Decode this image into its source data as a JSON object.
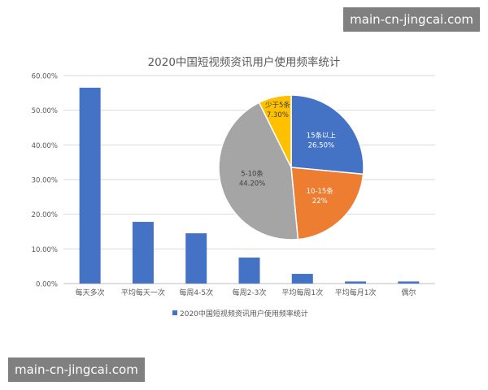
{
  "watermarks": {
    "top": "main-cn-jingcai.com",
    "bottom": "main-cn-jingcai.com"
  },
  "chart_data": [
    {
      "type": "bar",
      "title": "2020中国短视频资讯用户使用频率统计",
      "categories": [
        "每天多次",
        "平均每天一次",
        "每周4-5次",
        "每周2-3次",
        "平均每周1次",
        "平均每月1次",
        "偶尔"
      ],
      "series": [
        {
          "name": "2020中国短视频资讯用户使用频率统计",
          "values": [
            56.5,
            17.8,
            14.5,
            7.5,
            2.8,
            0.6,
            0.6
          ],
          "color": "#4472C4"
        }
      ],
      "ylim": [
        0,
        60
      ],
      "yticks": [
        "0.00%",
        "10.00%",
        "20.00%",
        "30.00%",
        "40.00%",
        "50.00%",
        "60.00%"
      ],
      "grid": true,
      "legend_position": "bottom"
    },
    {
      "type": "pie",
      "slices": [
        {
          "label": "15条以上",
          "value_label": "26.50%",
          "value": 26.5,
          "color": "#4472C4"
        },
        {
          "label": "10-15条",
          "value_label": "22%",
          "value": 22,
          "color": "#ED7D31"
        },
        {
          "label": "5-10条",
          "value_label": "44.20%",
          "value": 44.2,
          "color": "#A5A5A5"
        },
        {
          "label": "少于5条",
          "value_label": "7.30%",
          "value": 7.3,
          "color": "#FFC000"
        }
      ]
    }
  ]
}
